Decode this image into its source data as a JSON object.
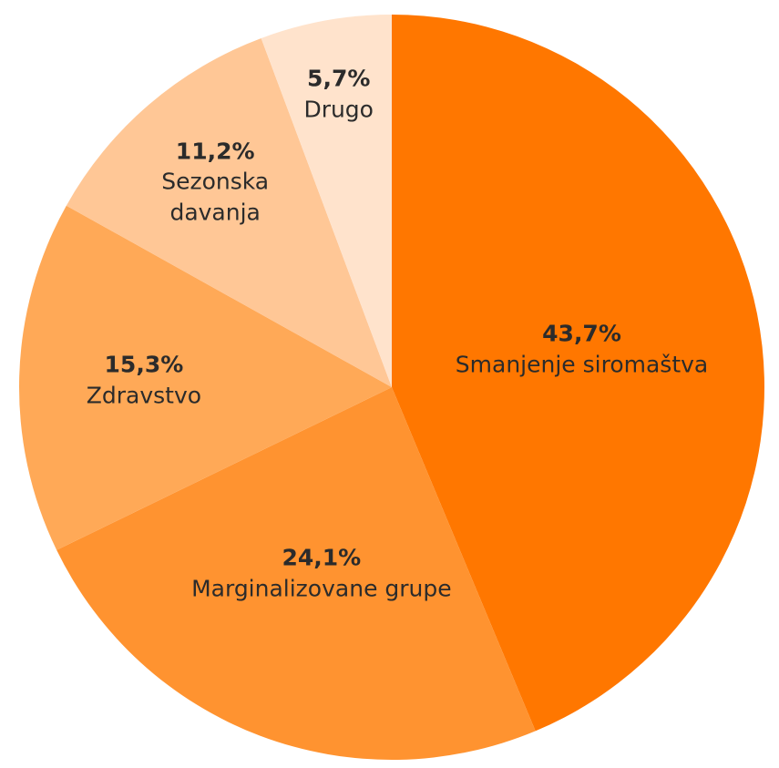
{
  "chart_data": {
    "type": "pie",
    "categories": [
      "Smanjenje siromaštva",
      "Marginalizovane grupe",
      "Zdravstvo",
      "Sezonska davanja",
      "Drugo"
    ],
    "values": [
      43.7,
      24.1,
      15.3,
      11.2,
      5.7
    ],
    "value_labels": [
      "43,7%",
      "24,1%",
      "15,3%",
      "11,2%",
      "5,7%"
    ],
    "colors": [
      "#ff7700",
      "#ff9330",
      "#ffa957",
      "#ffc796",
      "#ffe3cc"
    ]
  }
}
